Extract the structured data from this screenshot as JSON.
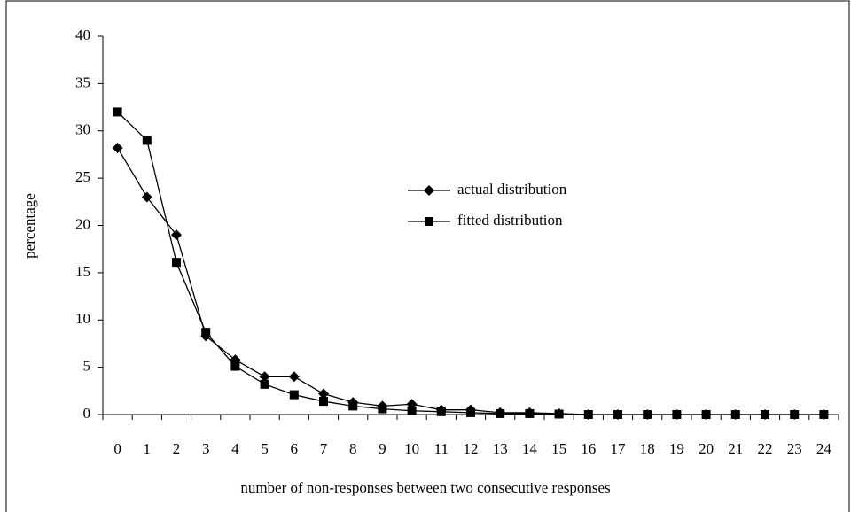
{
  "chart_data": {
    "type": "line",
    "x_label": "number of non-responses between two consecutive responses",
    "y_label": "percentage",
    "categories": [
      0,
      1,
      2,
      3,
      4,
      5,
      6,
      7,
      8,
      9,
      10,
      11,
      12,
      13,
      14,
      15,
      16,
      17,
      18,
      19,
      20,
      21,
      22,
      23,
      24
    ],
    "series": [
      {
        "name": "actual distribution",
        "color": "#000000",
        "marker": "diamond",
        "values": [
          28.2,
          23,
          19,
          8.3,
          5.8,
          4.0,
          4.0,
          2.2,
          1.3,
          0.9,
          1.1,
          0.5,
          0.5,
          0.2,
          0.2,
          0.1,
          0,
          0,
          0,
          0,
          0,
          0,
          0,
          0,
          0
        ]
      },
      {
        "name": "fitted distribution",
        "color": "#000000",
        "marker": "square",
        "values": [
          32,
          29,
          16.1,
          8.7,
          5.1,
          3.2,
          2.1,
          1.4,
          0.9,
          0.6,
          0.4,
          0.3,
          0.2,
          0.1,
          0.1,
          0.05,
          0,
          0,
          0,
          0,
          0,
          0,
          0,
          0,
          0
        ]
      }
    ],
    "ylim": [
      0,
      40
    ],
    "yticks": [
      0,
      5,
      10,
      15,
      20,
      25,
      30,
      35,
      40
    ],
    "grid": false
  }
}
